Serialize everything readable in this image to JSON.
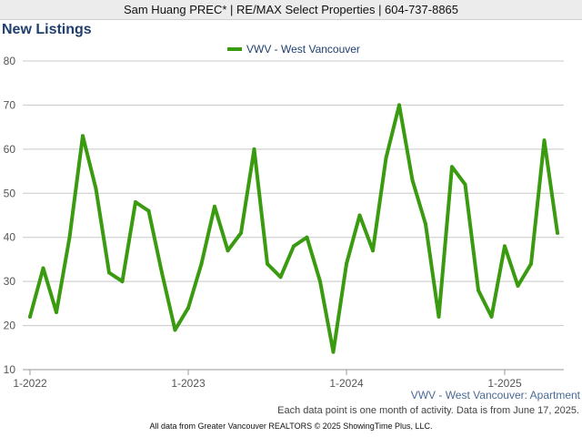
{
  "header": {
    "agent_line": "Sam Huang PREC* | RE/MAX Select Properties | 604-737-8865"
  },
  "page_title": "New Listings",
  "subtitle": "VWV - West Vancouver: Apartment",
  "note": "Each data point is one month of activity. Data is from June 17, 2025.",
  "footer": "All data from Greater Vancouver REALTORS © 2025 ShowingTime Plus, LLC.",
  "colors": {
    "series": "#3a9a10",
    "grid": "#c8c8c8",
    "title": "#1f3f6e",
    "legend_text": "#1f3f6e"
  },
  "chart_data": {
    "type": "line",
    "title": "New Listings",
    "xlabel": "",
    "ylabel": "",
    "ylim": [
      10,
      80
    ],
    "yticks": [
      10,
      20,
      30,
      40,
      50,
      60,
      70,
      80
    ],
    "xticks": [
      {
        "label": "1-2022",
        "index": 0
      },
      {
        "label": "1-2023",
        "index": 12
      },
      {
        "label": "1-2024",
        "index": 24
      },
      {
        "label": "1-2025",
        "index": 36
      }
    ],
    "grid": true,
    "legend_position": "top-center",
    "series": [
      {
        "name": "VWV - West Vancouver",
        "color": "#3a9a10",
        "start": "2022-01",
        "values": [
          22,
          33,
          23,
          40,
          63,
          51,
          32,
          30,
          48,
          46,
          32,
          19,
          24,
          34,
          47,
          37,
          41,
          60,
          34,
          31,
          38,
          40,
          30,
          14,
          34,
          45,
          37,
          58,
          70,
          53,
          43,
          22,
          56,
          52,
          28,
          22,
          38,
          29,
          34,
          62,
          41
        ]
      }
    ]
  }
}
